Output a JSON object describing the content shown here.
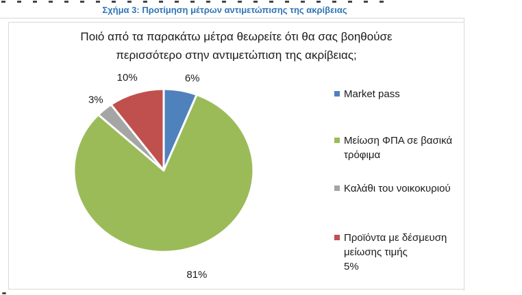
{
  "figure": {
    "caption": "Σχήμα 3: Προτίμηση μέτρων αντιμετώπισης της ακρίβειας"
  },
  "chart_data": {
    "type": "pie",
    "title": "Ποιό από τα παρακάτω μέτρα θεωρείτε ότι θα σας βοηθούσε περισσότερο στην αντιμετώπιση της ακρίβειας;",
    "title_lines": [
      "Ποιό από τα παρακάτω μέτρα θεωρείτε ότι θα σας βοηθούσε",
      "περισσότερο στην αντιμετώπιση της ακρίβειας;"
    ],
    "total": 100,
    "start_angle_deg": 0,
    "direction": "clockwise",
    "legend_position": "right",
    "slice_border_color": "#FFFFFF",
    "slices": [
      {
        "label": "Market pass",
        "value": 6,
        "pct_label": "6%",
        "color": "#4F81BD",
        "legend_lines": [
          "Market pass"
        ]
      },
      {
        "label": "Μείωση ΦΠΑ σε βασικά τρόφιμα",
        "value": 81,
        "pct_label": "81%",
        "color": "#9BBB59",
        "legend_lines": [
          "Μείωση ΦΠΑ σε βασικά",
          "τρόφιμα"
        ]
      },
      {
        "label": "Καλάθι του νοικοκυριού",
        "value": 3,
        "pct_label": "3%",
        "color": "#A5A5A5",
        "legend_lines": [
          "Καλάθι του νοικοκυριού"
        ]
      },
      {
        "label": "Προϊόντα με δέσμευση μείωσης τιμής 5%",
        "value": 10,
        "pct_label": "10%",
        "color": "#C0504D",
        "legend_lines": [
          "Προϊόντα με δέσμευση",
          "μείωσης τιμής",
          "5%"
        ]
      }
    ]
  },
  "colors": {
    "caption_text": "#2E75B6",
    "frame_border": "#D9D9D9",
    "rule": "#D3D6DB",
    "label_text": "#1A1A1A"
  }
}
